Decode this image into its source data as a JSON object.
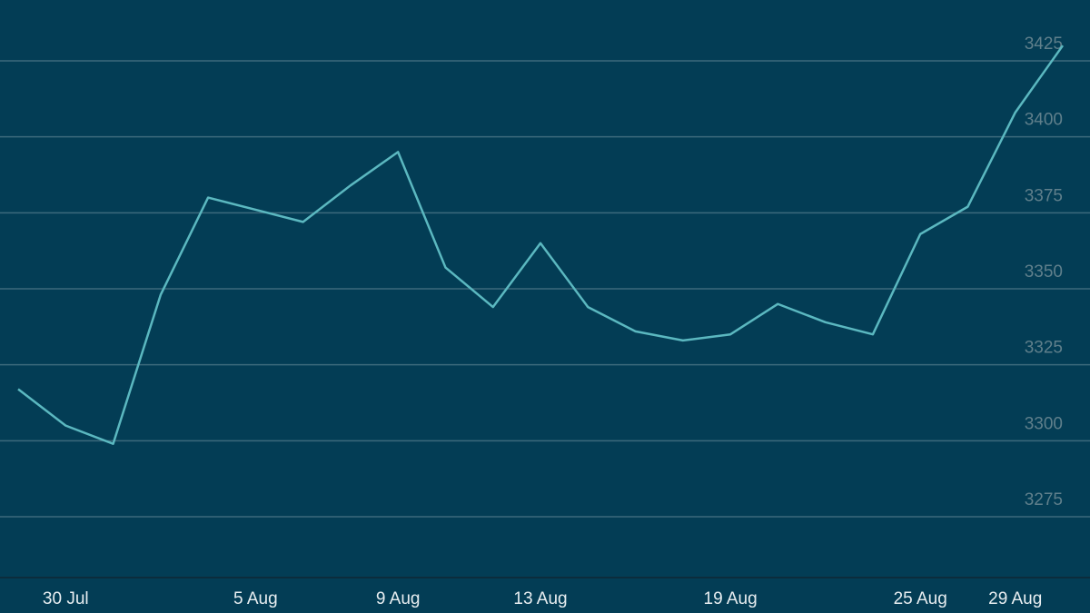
{
  "chart_data": {
    "type": "line",
    "categories": [
      null,
      "30 Jul",
      null,
      null,
      null,
      "5 Aug",
      null,
      null,
      "9 Aug",
      null,
      null,
      "13 Aug",
      null,
      null,
      null,
      "19 Aug",
      null,
      null,
      null,
      "25 Aug",
      null,
      "29 Aug",
      null
    ],
    "series": [
      {
        "color": "#5bb8c0",
        "values": [
          3317,
          3305,
          3299,
          3348,
          3380,
          3376,
          3372,
          3384,
          3395,
          3357,
          3344,
          3365,
          3344,
          3336,
          3333,
          3335,
          3345,
          3339,
          3335,
          3368,
          3377,
          3408,
          3430
        ]
      }
    ],
    "ylim": [
      3255,
      3445
    ],
    "yticks": [
      3275,
      3300,
      3325,
      3350,
      3375,
      3400,
      3425
    ],
    "grid": true
  }
}
